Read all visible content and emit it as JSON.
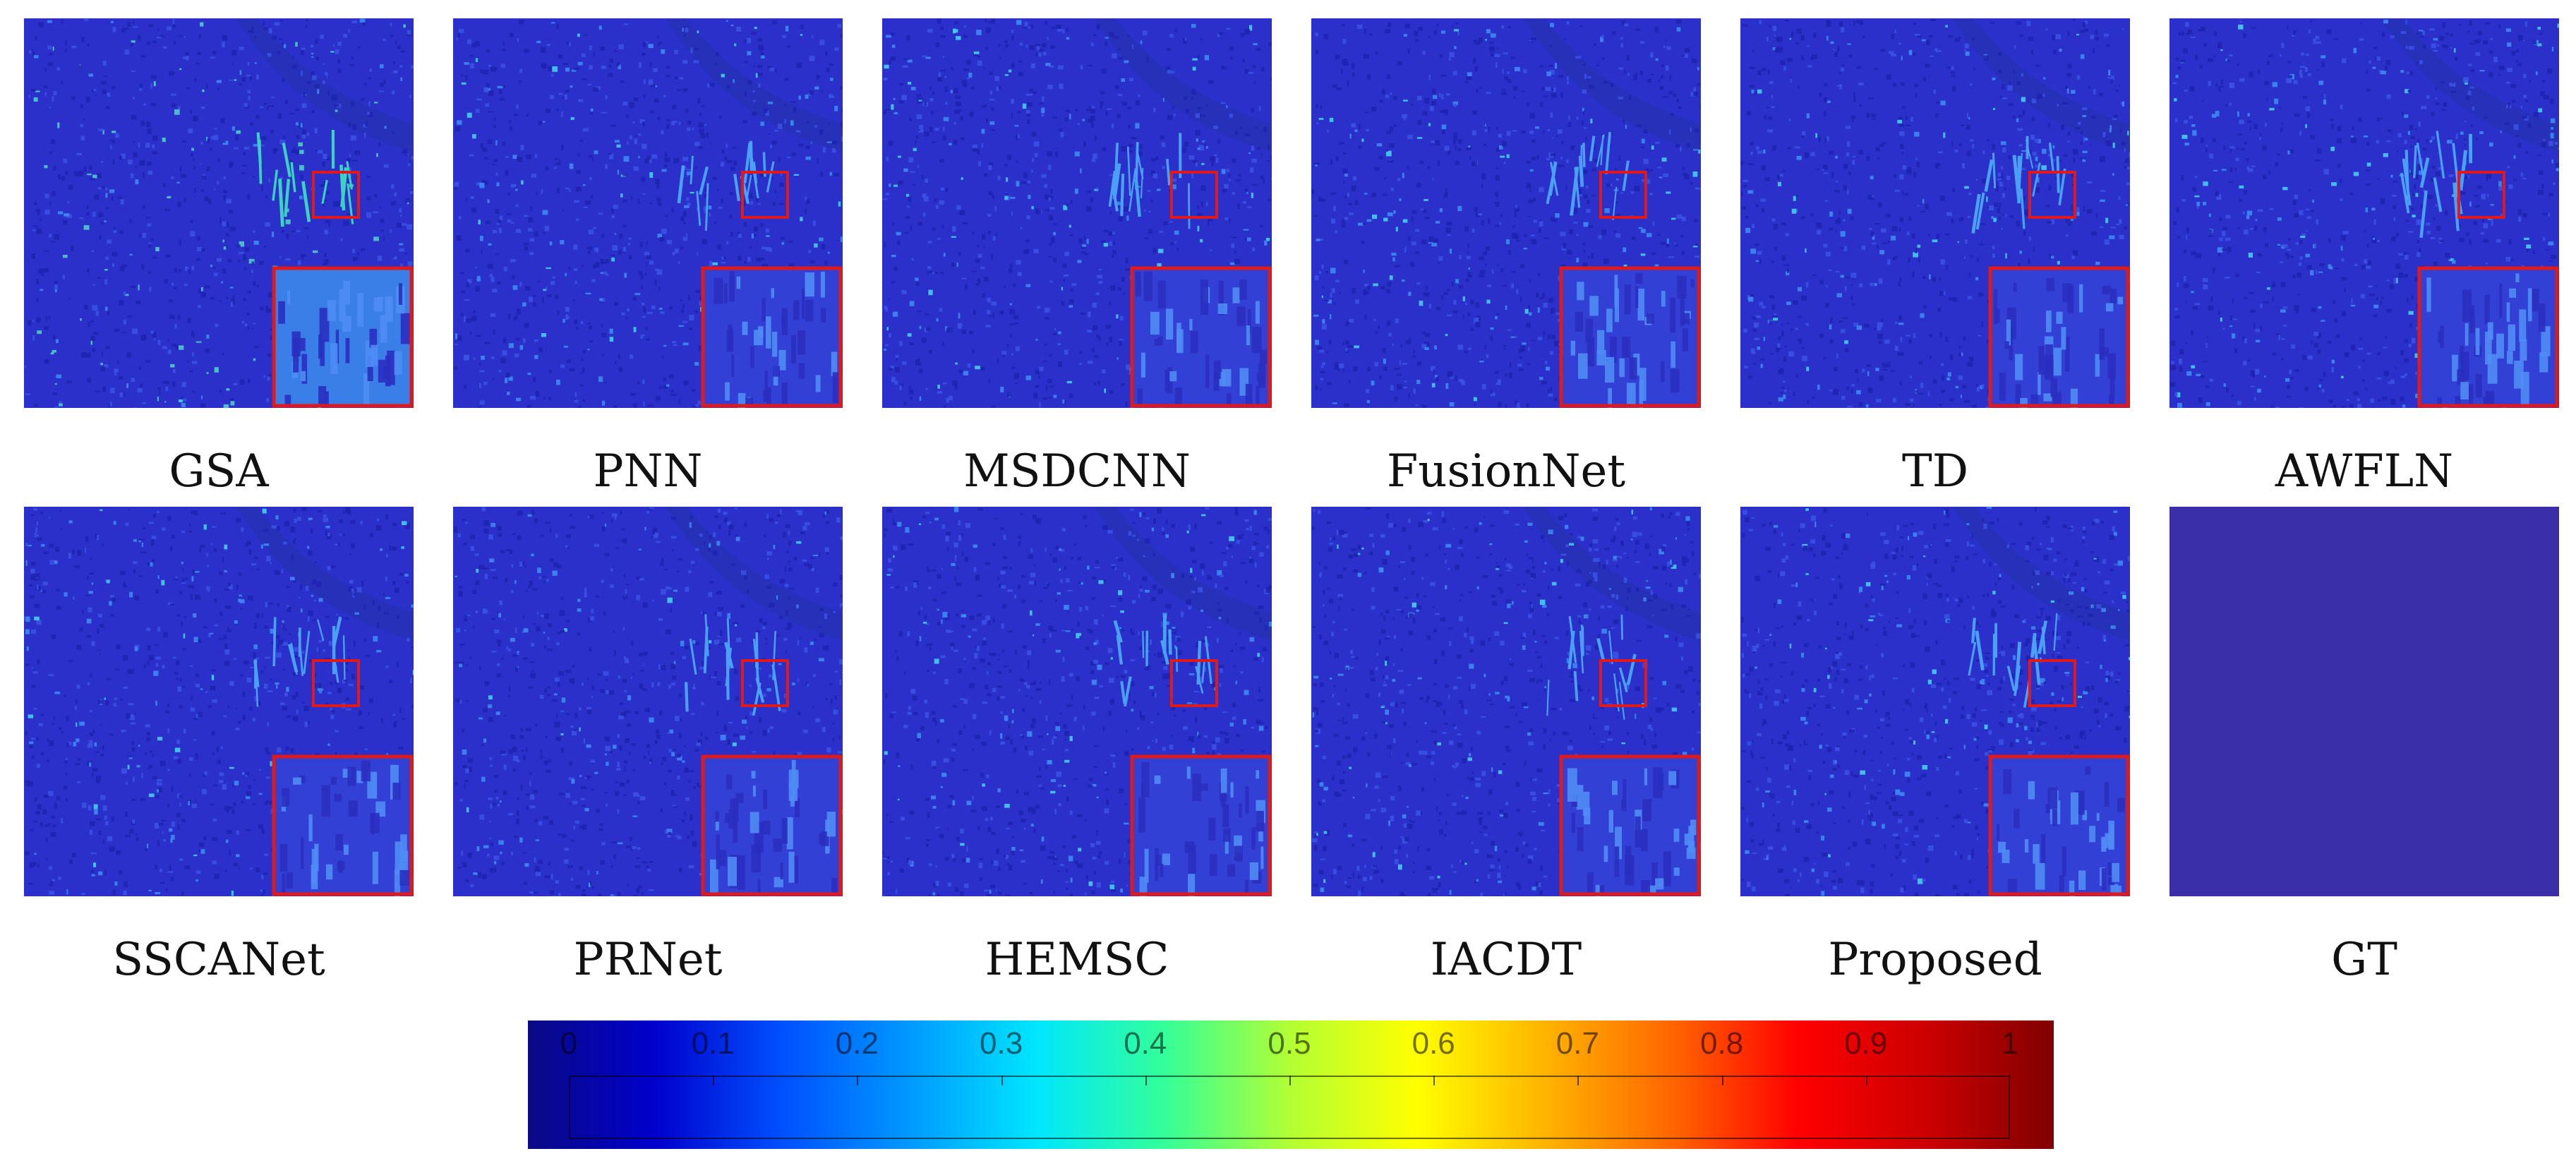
{
  "panels": [
    {
      "label": "GSA"
    },
    {
      "label": "PNN"
    },
    {
      "label": "MSDCNN"
    },
    {
      "label": "FusionNet"
    },
    {
      "label": "TD"
    },
    {
      "label": "AWFLN"
    },
    {
      "label": "SSCANet"
    },
    {
      "label": "PRNet"
    },
    {
      "label": "HEMSC"
    },
    {
      "label": "IACDT"
    },
    {
      "label": "Proposed"
    },
    {
      "label": "GT"
    }
  ],
  "colorbar": {
    "ticks": [
      "0",
      "0.1",
      "0.2",
      "0.3",
      "0.4",
      "0.5",
      "0.6",
      "0.7",
      "0.8",
      "0.9",
      "1"
    ],
    "colors": [
      "#0a0a85",
      "#0000cc",
      "#0050ff",
      "#0099ff",
      "#00e6ff",
      "#33ff99",
      "#b3ff33",
      "#ffff00",
      "#ffb300",
      "#ff6600",
      "#ff0000",
      "#cc0000",
      "#800000"
    ]
  },
  "colors": {
    "map_base": "#2a30c9",
    "gt_fill": "#3a2fa6",
    "highlight_box": "#e01a1a"
  }
}
